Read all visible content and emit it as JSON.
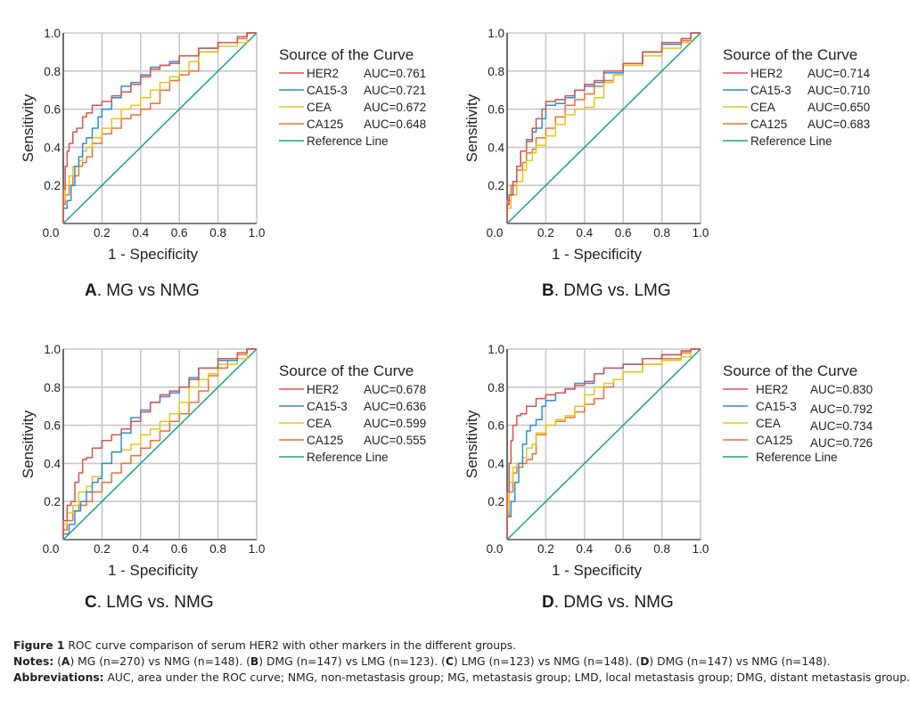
{
  "chart_data": [
    {
      "type": "line",
      "panel_letter": "A",
      "title": "MG vs NMG",
      "title_sep": ". ",
      "xlabel": "1 - Specificity",
      "ylabel": "Sensitivity",
      "xlim": [
        0,
        1
      ],
      "ylim": [
        0,
        1
      ],
      "xticks": [
        "0.0",
        "0.2",
        "0.4",
        "0.6",
        "0.8",
        "1.0"
      ],
      "yticks": [
        "0.0",
        "0.2",
        "0.4",
        "0.6",
        "0.8",
        "1.0"
      ],
      "grid": true,
      "legend_title": "Source of the Curve",
      "legend_position": "right",
      "series": [
        {
          "name": "HER2",
          "auc_label": "AUC=0.761",
          "color": "#d9534f",
          "x": [
            0,
            0.01,
            0.02,
            0.03,
            0.05,
            0.07,
            0.1,
            0.12,
            0.15,
            0.2,
            0.25,
            0.3,
            0.35,
            0.4,
            0.45,
            0.5,
            0.55,
            0.6,
            0.7,
            0.8,
            0.9,
            0.95,
            1
          ],
          "y": [
            0,
            0.18,
            0.3,
            0.38,
            0.42,
            0.48,
            0.5,
            0.56,
            0.58,
            0.62,
            0.64,
            0.67,
            0.69,
            0.73,
            0.77,
            0.81,
            0.83,
            0.84,
            0.88,
            0.92,
            0.95,
            0.98,
            1
          ]
        },
        {
          "name": "CA15-3",
          "auc_label": "AUC=0.721",
          "color": "#2a8fd6",
          "x": [
            0,
            0.02,
            0.04,
            0.06,
            0.08,
            0.1,
            0.12,
            0.15,
            0.18,
            0.2,
            0.25,
            0.3,
            0.35,
            0.4,
            0.45,
            0.5,
            0.55,
            0.6,
            0.7,
            0.8,
            0.9,
            0.95,
            1
          ],
          "y": [
            0,
            0.08,
            0.12,
            0.2,
            0.3,
            0.35,
            0.42,
            0.45,
            0.5,
            0.56,
            0.6,
            0.66,
            0.72,
            0.74,
            0.78,
            0.82,
            0.83,
            0.85,
            0.88,
            0.92,
            0.95,
            0.98,
            1
          ]
        },
        {
          "name": "CEA",
          "auc_label": "AUC=0.672",
          "color": "#e0c81a",
          "x": [
            0,
            0.01,
            0.03,
            0.05,
            0.08,
            0.1,
            0.12,
            0.15,
            0.2,
            0.25,
            0.3,
            0.35,
            0.4,
            0.45,
            0.5,
            0.55,
            0.6,
            0.65,
            0.7,
            0.8,
            0.9,
            0.95,
            1
          ],
          "y": [
            0,
            0.12,
            0.2,
            0.25,
            0.3,
            0.33,
            0.38,
            0.4,
            0.45,
            0.5,
            0.55,
            0.6,
            0.62,
            0.66,
            0.7,
            0.74,
            0.77,
            0.8,
            0.85,
            0.9,
            0.93,
            0.95,
            1
          ]
        },
        {
          "name": "CA125",
          "auc_label": "AUC=0.648",
          "color": "#f07030",
          "x": [
            0,
            0.01,
            0.03,
            0.05,
            0.08,
            0.1,
            0.12,
            0.15,
            0.2,
            0.25,
            0.3,
            0.35,
            0.4,
            0.45,
            0.5,
            0.55,
            0.6,
            0.65,
            0.7,
            0.8,
            0.9,
            0.95,
            1
          ],
          "y": [
            0,
            0.1,
            0.15,
            0.2,
            0.25,
            0.3,
            0.32,
            0.35,
            0.42,
            0.47,
            0.5,
            0.55,
            0.57,
            0.6,
            0.63,
            0.7,
            0.75,
            0.78,
            0.8,
            0.9,
            0.95,
            0.97,
            1
          ]
        },
        {
          "name": "Reference Line",
          "auc_label": "",
          "color": "#1aa38a",
          "x": [
            0,
            1
          ],
          "y": [
            0,
            1
          ]
        }
      ]
    },
    {
      "type": "line",
      "panel_letter": "B",
      "title": "DMG vs. LMG",
      "title_sep": ". ",
      "xlabel": "1 - Specificity",
      "ylabel": "Sensitivity",
      "xlim": [
        0,
        1
      ],
      "ylim": [
        0,
        1
      ],
      "xticks": [
        "0.0",
        "0.2",
        "0.4",
        "0.6",
        "0.8",
        "1.0"
      ],
      "yticks": [
        "0.0",
        "0.2",
        "0.4",
        "0.6",
        "0.8",
        "1.0"
      ],
      "grid": true,
      "legend_title": "Source of the Curve",
      "legend_position": "right",
      "series": [
        {
          "name": "HER2",
          "auc_label": "AUC=0.714",
          "color": "#d9534f",
          "x": [
            0,
            0.01,
            0.03,
            0.05,
            0.07,
            0.1,
            0.13,
            0.15,
            0.18,
            0.2,
            0.25,
            0.3,
            0.35,
            0.4,
            0.45,
            0.5,
            0.6,
            0.7,
            0.8,
            0.9,
            0.95,
            1
          ],
          "y": [
            0,
            0.1,
            0.15,
            0.22,
            0.3,
            0.38,
            0.43,
            0.5,
            0.55,
            0.6,
            0.64,
            0.65,
            0.67,
            0.7,
            0.73,
            0.75,
            0.8,
            0.84,
            0.9,
            0.95,
            0.97,
            1
          ]
        },
        {
          "name": "CA15-3",
          "auc_label": "AUC=0.710",
          "color": "#2a8fd6",
          "x": [
            0,
            0.01,
            0.03,
            0.05,
            0.07,
            0.1,
            0.13,
            0.15,
            0.18,
            0.2,
            0.25,
            0.3,
            0.35,
            0.4,
            0.45,
            0.5,
            0.6,
            0.7,
            0.8,
            0.9,
            0.95,
            1
          ],
          "y": [
            0,
            0.1,
            0.15,
            0.22,
            0.3,
            0.38,
            0.44,
            0.48,
            0.5,
            0.55,
            0.62,
            0.63,
            0.66,
            0.7,
            0.72,
            0.74,
            0.79,
            0.84,
            0.9,
            0.94,
            0.97,
            1
          ]
        },
        {
          "name": "CEA",
          "auc_label": "AUC=0.650",
          "color": "#e0c81a",
          "x": [
            0,
            0.02,
            0.05,
            0.08,
            0.1,
            0.13,
            0.15,
            0.2,
            0.25,
            0.3,
            0.35,
            0.4,
            0.45,
            0.5,
            0.55,
            0.6,
            0.7,
            0.8,
            0.9,
            0.95,
            1
          ],
          "y": [
            0,
            0.08,
            0.15,
            0.22,
            0.28,
            0.33,
            0.37,
            0.41,
            0.46,
            0.52,
            0.57,
            0.6,
            0.61,
            0.66,
            0.74,
            0.78,
            0.83,
            0.88,
            0.92,
            0.95,
            1
          ]
        },
        {
          "name": "CA125",
          "auc_label": "AUC=0.683",
          "color": "#f07030",
          "x": [
            0,
            0.02,
            0.05,
            0.08,
            0.1,
            0.13,
            0.15,
            0.2,
            0.25,
            0.3,
            0.35,
            0.4,
            0.45,
            0.5,
            0.55,
            0.6,
            0.7,
            0.8,
            0.9,
            0.95,
            1
          ],
          "y": [
            0,
            0.12,
            0.2,
            0.28,
            0.32,
            0.37,
            0.39,
            0.45,
            0.5,
            0.56,
            0.62,
            0.65,
            0.68,
            0.72,
            0.75,
            0.78,
            0.83,
            0.9,
            0.94,
            0.96,
            1
          ]
        },
        {
          "name": "Reference Line",
          "auc_label": "",
          "color": "#1aa38a",
          "x": [
            0,
            1
          ],
          "y": [
            0,
            1
          ]
        }
      ]
    },
    {
      "type": "line",
      "panel_letter": "C",
      "title": "LMG vs. NMG",
      "title_sep": ". ",
      "xlabel": "1 - Specificity",
      "ylabel": "Sensitivity",
      "xlim": [
        0,
        1
      ],
      "ylim": [
        0,
        1
      ],
      "xticks": [
        "0.0",
        "0.2",
        "0.4",
        "0.6",
        "0.8",
        "1.0"
      ],
      "yticks": [
        "0.0",
        "0.2",
        "0.4",
        "0.6",
        "0.8",
        "1.0"
      ],
      "grid": true,
      "legend_title": "Source of the Curve",
      "legend_position": "right",
      "series": [
        {
          "name": "HER2",
          "auc_label": "AUC=0.678",
          "color": "#d9534f",
          "x": [
            0,
            0.02,
            0.04,
            0.06,
            0.08,
            0.1,
            0.12,
            0.15,
            0.2,
            0.25,
            0.3,
            0.35,
            0.4,
            0.45,
            0.5,
            0.55,
            0.6,
            0.65,
            0.7,
            0.8,
            0.9,
            0.95,
            1
          ],
          "y": [
            0,
            0.1,
            0.18,
            0.2,
            0.3,
            0.35,
            0.42,
            0.43,
            0.48,
            0.52,
            0.55,
            0.58,
            0.62,
            0.67,
            0.72,
            0.76,
            0.78,
            0.8,
            0.84,
            0.9,
            0.95,
            0.98,
            1
          ]
        },
        {
          "name": "CA15-3",
          "auc_label": "AUC=0.636",
          "color": "#2a8fd6",
          "x": [
            0,
            0.03,
            0.06,
            0.09,
            0.12,
            0.15,
            0.18,
            0.2,
            0.25,
            0.3,
            0.35,
            0.4,
            0.45,
            0.5,
            0.55,
            0.6,
            0.65,
            0.7,
            0.8,
            0.9,
            0.95,
            1
          ],
          "y": [
            0,
            0.03,
            0.08,
            0.15,
            0.2,
            0.25,
            0.3,
            0.32,
            0.4,
            0.46,
            0.56,
            0.64,
            0.68,
            0.72,
            0.75,
            0.77,
            0.8,
            0.85,
            0.9,
            0.94,
            0.98,
            1
          ]
        },
        {
          "name": "CEA",
          "auc_label": "AUC=0.599",
          "color": "#e0c81a",
          "x": [
            0,
            0.02,
            0.05,
            0.08,
            0.12,
            0.15,
            0.2,
            0.25,
            0.3,
            0.35,
            0.4,
            0.45,
            0.5,
            0.55,
            0.6,
            0.65,
            0.7,
            0.75,
            0.8,
            0.9,
            0.95,
            1
          ],
          "y": [
            0,
            0.08,
            0.14,
            0.18,
            0.25,
            0.28,
            0.33,
            0.4,
            0.46,
            0.47,
            0.5,
            0.55,
            0.58,
            0.62,
            0.66,
            0.72,
            0.8,
            0.84,
            0.87,
            0.92,
            0.95,
            1
          ]
        },
        {
          "name": "CA125",
          "auc_label": "AUC=0.555",
          "color": "#f07030",
          "x": [
            0,
            0.02,
            0.05,
            0.08,
            0.12,
            0.15,
            0.2,
            0.25,
            0.3,
            0.35,
            0.4,
            0.45,
            0.5,
            0.55,
            0.6,
            0.65,
            0.7,
            0.75,
            0.8,
            0.85,
            0.9,
            0.95,
            1
          ],
          "y": [
            0,
            0.05,
            0.1,
            0.15,
            0.18,
            0.2,
            0.25,
            0.3,
            0.35,
            0.4,
            0.44,
            0.48,
            0.52,
            0.57,
            0.62,
            0.66,
            0.72,
            0.78,
            0.86,
            0.9,
            0.94,
            0.97,
            1
          ]
        },
        {
          "name": "Reference Line",
          "auc_label": "",
          "color": "#1aa38a",
          "x": [
            0,
            1
          ],
          "y": [
            0,
            1
          ]
        }
      ]
    },
    {
      "type": "line",
      "panel_letter": "D",
      "title": "DMG vs. NMG",
      "title_sep": ". ",
      "xlabel": "1 - Specificity",
      "ylabel": "Sensitivity",
      "xlim": [
        0,
        1
      ],
      "ylim": [
        0,
        1
      ],
      "xticks": [
        "0.0",
        "0.2",
        "0.4",
        "0.6",
        "0.8",
        "1.0"
      ],
      "yticks": [
        "0.0",
        "0.2",
        "0.4",
        "0.6",
        "0.8",
        "1.0"
      ],
      "grid": true,
      "legend_title": "Source of the Curve",
      "legend_position": "right",
      "series": [
        {
          "name": "HER2",
          "auc_label": "AUC=0.830",
          "color": "#d9534f",
          "x": [
            0,
            0.01,
            0.02,
            0.03,
            0.05,
            0.07,
            0.1,
            0.15,
            0.2,
            0.25,
            0.3,
            0.35,
            0.4,
            0.45,
            0.5,
            0.6,
            0.7,
            0.8,
            0.9,
            0.95,
            1
          ],
          "y": [
            0,
            0.25,
            0.4,
            0.52,
            0.6,
            0.65,
            0.66,
            0.7,
            0.74,
            0.76,
            0.77,
            0.79,
            0.81,
            0.83,
            0.87,
            0.9,
            0.92,
            0.95,
            0.97,
            0.99,
            1
          ]
        },
        {
          "name": "CA15-3",
          "auc_label": "AUC=0.792",
          "color": "#2a8fd6",
          "x": [
            0,
            0.02,
            0.04,
            0.06,
            0.08,
            0.1,
            0.12,
            0.15,
            0.18,
            0.2,
            0.25,
            0.3,
            0.35,
            0.4,
            0.45,
            0.5,
            0.6,
            0.7,
            0.8,
            0.9,
            0.95,
            1
          ],
          "y": [
            0,
            0.12,
            0.2,
            0.3,
            0.4,
            0.5,
            0.57,
            0.6,
            0.63,
            0.7,
            0.73,
            0.77,
            0.79,
            0.82,
            0.82,
            0.87,
            0.9,
            0.92,
            0.95,
            0.97,
            0.99,
            1
          ]
        },
        {
          "name": "CEA",
          "auc_label": "AUC=0.734",
          "color": "#e0c81a",
          "x": [
            0,
            0.01,
            0.03,
            0.05,
            0.08,
            0.1,
            0.13,
            0.15,
            0.2,
            0.25,
            0.3,
            0.35,
            0.4,
            0.45,
            0.5,
            0.55,
            0.6,
            0.7,
            0.8,
            0.9,
            0.95,
            1
          ],
          "y": [
            0,
            0.15,
            0.3,
            0.38,
            0.4,
            0.43,
            0.48,
            0.5,
            0.56,
            0.6,
            0.63,
            0.65,
            0.7,
            0.76,
            0.8,
            0.82,
            0.84,
            0.88,
            0.92,
            0.94,
            0.96,
            1
          ]
        },
        {
          "name": "CA125",
          "auc_label": "AUC=0.726",
          "color": "#f07030",
          "x": [
            0,
            0.01,
            0.03,
            0.05,
            0.08,
            0.1,
            0.13,
            0.15,
            0.2,
            0.25,
            0.3,
            0.35,
            0.4,
            0.45,
            0.5,
            0.55,
            0.6,
            0.7,
            0.8,
            0.9,
            0.95,
            1
          ],
          "y": [
            0,
            0.12,
            0.25,
            0.35,
            0.38,
            0.4,
            0.42,
            0.45,
            0.55,
            0.6,
            0.62,
            0.64,
            0.67,
            0.71,
            0.74,
            0.8,
            0.84,
            0.88,
            0.92,
            0.95,
            0.98,
            1
          ]
        },
        {
          "name": "Reference Line",
          "auc_label": "",
          "color": "#1aa38a",
          "x": [
            0,
            1
          ],
          "y": [
            0,
            1
          ]
        }
      ]
    }
  ],
  "caption": {
    "figure_label": "Figure 1",
    "figure_text": " ROC curve comparison of serum HER2 with other markers in the different groups.",
    "notes_label": "Notes:",
    "notes_parts": [
      {
        "text": " (",
        "bold": false
      },
      {
        "text": "A",
        "bold": true
      },
      {
        "text": ") MG (n=270) vs NMG (n=148). (",
        "bold": false
      },
      {
        "text": "B",
        "bold": true
      },
      {
        "text": ") DMG (n=147) vs LMG (n=123). (",
        "bold": false
      },
      {
        "text": "C",
        "bold": true
      },
      {
        "text": ") LMG (n=123) vs NMG (n=148). (",
        "bold": false
      },
      {
        "text": "D",
        "bold": true
      },
      {
        "text": ") DMG (n=147) vs NMG (n=148).",
        "bold": false
      }
    ],
    "abbreviations_label": "Abbreviations:",
    "abbreviations_text": " AUC, area under the ROC curve; NMG, non-metastasis group; MG, metastasis group; LMD, local metastasis group; DMG, distant metastasis group."
  }
}
